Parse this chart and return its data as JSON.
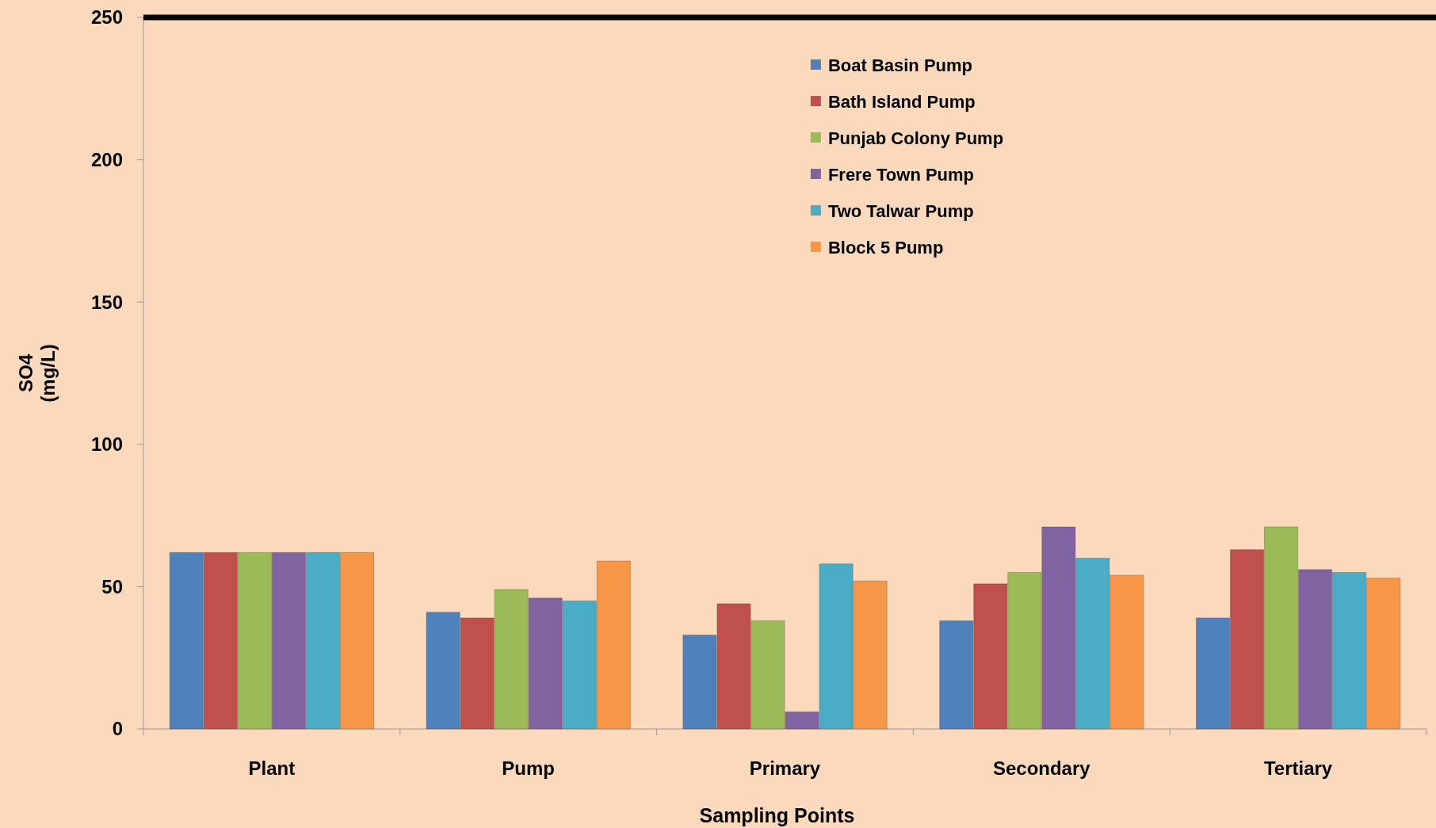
{
  "chart_data": {
    "type": "bar",
    "xlabel": "Sampling Points",
    "ylabel": "SO4 (mg/L)",
    "categories": [
      "Plant",
      "Pump",
      "Primary",
      "Secondary",
      "Tertiary"
    ],
    "series": [
      {
        "name": "Boat Basin Pump",
        "color": "#4f81bd",
        "values": [
          62,
          41,
          33,
          38,
          39
        ]
      },
      {
        "name": "Bath Island Pump",
        "color": "#c0504d",
        "values": [
          62,
          39,
          44,
          51,
          63
        ]
      },
      {
        "name": "Punjab Colony Pump",
        "color": "#9bbb59",
        "values": [
          62,
          49,
          38,
          55,
          71
        ]
      },
      {
        "name": "Frere Town Pump",
        "color": "#8064a2",
        "values": [
          62,
          46,
          6,
          71,
          56
        ]
      },
      {
        "name": "Two Talwar Pump",
        "color": "#4bacc6",
        "values": [
          62,
          45,
          58,
          60,
          55
        ]
      },
      {
        "name": "Block 5 Pump",
        "color": "#f79646",
        "values": [
          62,
          59,
          52,
          54,
          53
        ]
      }
    ],
    "ylim": [
      0,
      250
    ],
    "yticks": [
      0,
      50,
      100,
      150,
      200,
      250
    ],
    "grid": false,
    "legend": "top right",
    "ref_lines": [
      {
        "axis": "y",
        "value": 250,
        "color": "#000000"
      }
    ]
  }
}
